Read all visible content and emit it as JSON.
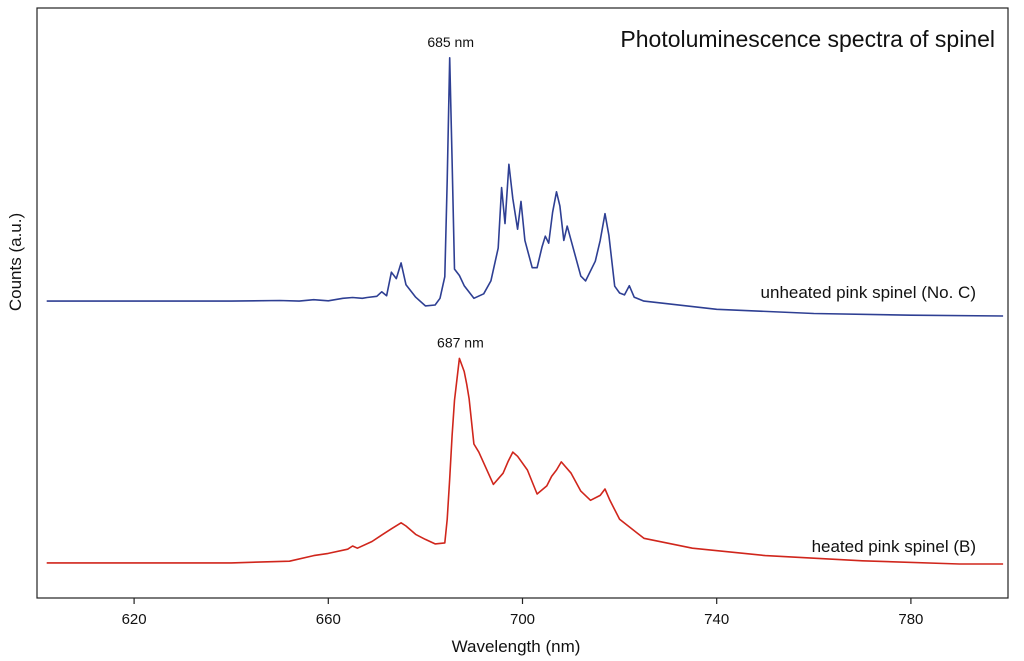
{
  "chart_data": {
    "type": "line",
    "title": "Photoluminescence spectra of spinel",
    "xlabel": "Wavelength (nm)",
    "ylabel": "Counts (a.u.)",
    "xlim": [
      600,
      800
    ],
    "x_ticks": [
      620,
      660,
      700,
      740,
      780
    ],
    "y_tick_labels": false,
    "grid": false,
    "colors": {
      "unheated": "#2e3f93",
      "heated": "#d0261c"
    },
    "series": [
      {
        "name": "unheated pink spinel (No. C)",
        "color": "#2e3f93",
        "points": [
          [
            602,
            0.53
          ],
          [
            640,
            0.53
          ],
          [
            650,
            0.55
          ],
          [
            654,
            0.53
          ],
          [
            657,
            0.58
          ],
          [
            660,
            0.54
          ],
          [
            663,
            0.63
          ],
          [
            665,
            0.66
          ],
          [
            667,
            0.63
          ],
          [
            668,
            0.66
          ],
          [
            670,
            0.7
          ],
          [
            671,
            0.86
          ],
          [
            672,
            0.72
          ],
          [
            673,
            1.56
          ],
          [
            674,
            1.33
          ],
          [
            675,
            1.89
          ],
          [
            676,
            1.11
          ],
          [
            678,
            0.67
          ],
          [
            680,
            0.36
          ],
          [
            682,
            0.39
          ],
          [
            683,
            0.63
          ],
          [
            684,
            1.4
          ],
          [
            684.5,
            4.82
          ],
          [
            685,
            9.19
          ],
          [
            685.5,
            5.52
          ],
          [
            686,
            1.67
          ],
          [
            687,
            1.44
          ],
          [
            688,
            1.08
          ],
          [
            690,
            0.63
          ],
          [
            692,
            0.79
          ],
          [
            693.5,
            1.25
          ],
          [
            695,
            2.42
          ],
          [
            695.7,
            4.57
          ],
          [
            696.4,
            3.29
          ],
          [
            697.2,
            5.4
          ],
          [
            698,
            4.18
          ],
          [
            699,
            3.09
          ],
          [
            699.7,
            4.08
          ],
          [
            700.5,
            2.69
          ],
          [
            702,
            1.72
          ],
          [
            703,
            1.72
          ],
          [
            704,
            2.44
          ],
          [
            704.7,
            2.84
          ],
          [
            705.4,
            2.59
          ],
          [
            706.2,
            3.69
          ],
          [
            707,
            4.42
          ],
          [
            707.7,
            3.91
          ],
          [
            708.5,
            2.69
          ],
          [
            709.2,
            3.2
          ],
          [
            710,
            2.69
          ],
          [
            712,
            1.42
          ],
          [
            713,
            1.25
          ],
          [
            715,
            1.95
          ],
          [
            716,
            2.69
          ],
          [
            717,
            3.64
          ],
          [
            717.8,
            2.87
          ],
          [
            719,
            1.06
          ],
          [
            720,
            0.82
          ],
          [
            721,
            0.75
          ],
          [
            722,
            1.08
          ],
          [
            723,
            0.67
          ],
          [
            725,
            0.53
          ],
          [
            740,
            0.24
          ],
          [
            760,
            0.09
          ],
          [
            780,
            0.03
          ],
          [
            799,
            0.0
          ]
        ]
      },
      {
        "name": "heated pink spinel (B)",
        "color": "#d0261c",
        "points": [
          [
            602,
            0.03
          ],
          [
            640,
            0.03
          ],
          [
            652,
            0.08
          ],
          [
            657,
            0.24
          ],
          [
            660,
            0.3
          ],
          [
            664,
            0.42
          ],
          [
            665,
            0.51
          ],
          [
            666,
            0.45
          ],
          [
            669,
            0.64
          ],
          [
            671,
            0.82
          ],
          [
            673,
            1.0
          ],
          [
            675,
            1.17
          ],
          [
            676,
            1.08
          ],
          [
            678,
            0.84
          ],
          [
            680,
            0.7
          ],
          [
            682,
            0.57
          ],
          [
            684,
            0.6
          ],
          [
            684.5,
            1.27
          ],
          [
            685,
            2.42
          ],
          [
            685.5,
            3.65
          ],
          [
            686,
            4.65
          ],
          [
            687,
            5.84
          ],
          [
            688,
            5.47
          ],
          [
            688.5,
            5.11
          ],
          [
            689,
            4.7
          ],
          [
            690,
            3.41
          ],
          [
            691,
            3.18
          ],
          [
            694,
            2.26
          ],
          [
            696,
            2.58
          ],
          [
            697,
            2.9
          ],
          [
            698,
            3.18
          ],
          [
            699,
            3.06
          ],
          [
            701,
            2.67
          ],
          [
            703,
            1.99
          ],
          [
            705,
            2.22
          ],
          [
            706,
            2.49
          ],
          [
            707,
            2.67
          ],
          [
            708,
            2.9
          ],
          [
            710,
            2.58
          ],
          [
            712,
            2.07
          ],
          [
            714,
            1.81
          ],
          [
            716,
            1.95
          ],
          [
            717,
            2.13
          ],
          [
            718,
            1.81
          ],
          [
            720,
            1.27
          ],
          [
            725,
            0.73
          ],
          [
            735,
            0.45
          ],
          [
            750,
            0.24
          ],
          [
            770,
            0.09
          ],
          [
            790,
            0.0
          ],
          [
            799,
            0.0
          ]
        ]
      }
    ],
    "annotations": [
      {
        "text": "685 nm",
        "x": 685,
        "series": 0
      },
      {
        "text": "687 nm",
        "x": 687,
        "series": 1
      }
    ]
  }
}
